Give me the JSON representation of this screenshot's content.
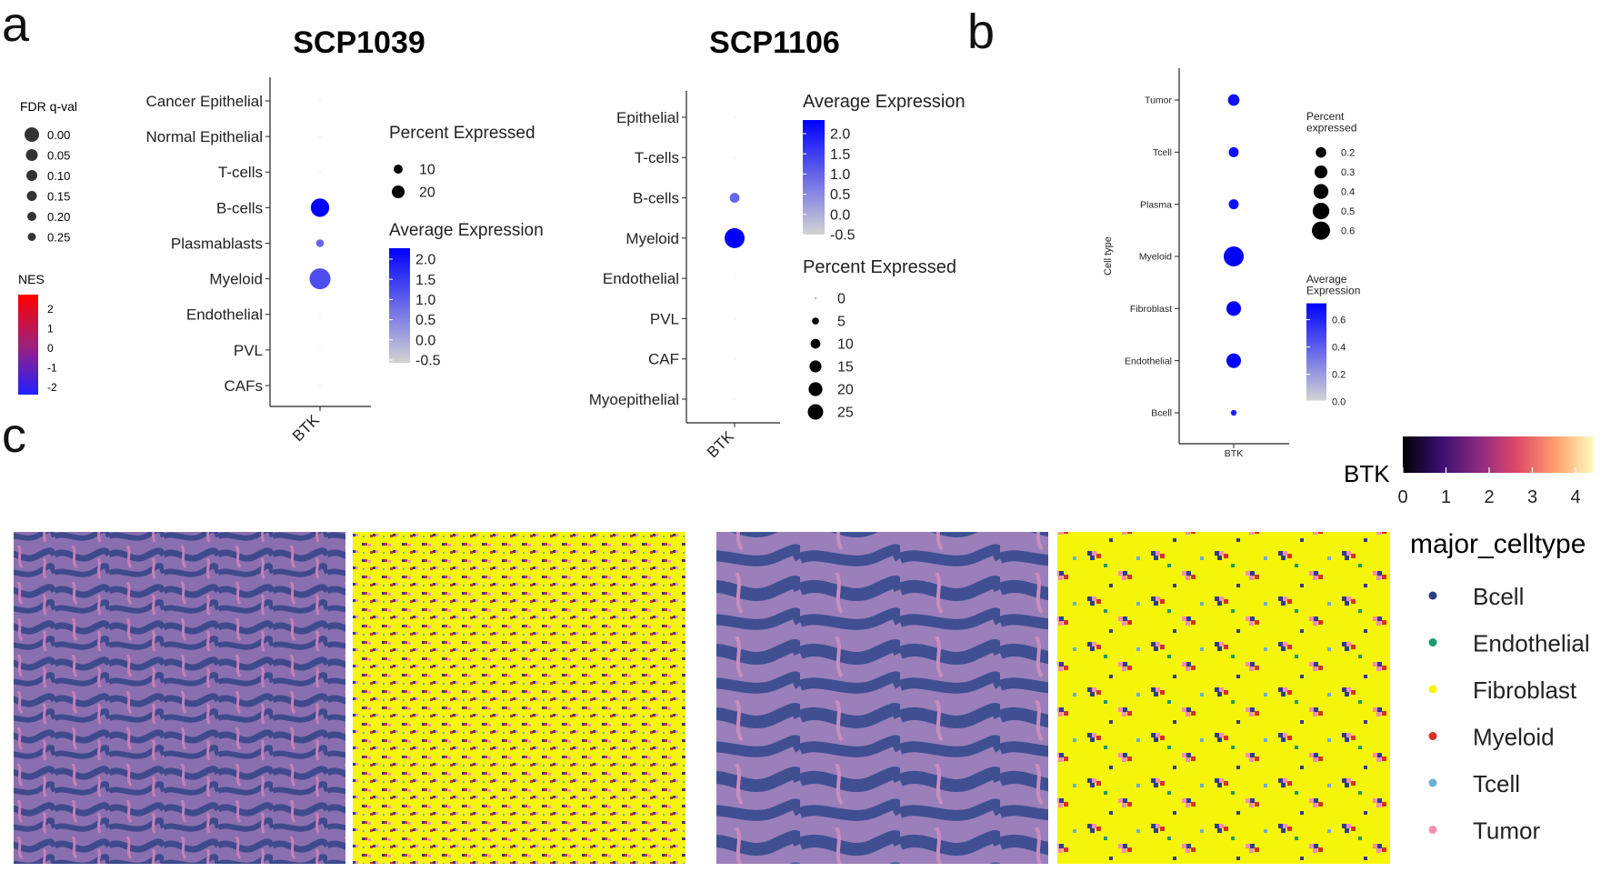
{
  "panel_letters": {
    "a": "a",
    "b": "b",
    "c": "c"
  },
  "fdr_legend": {
    "title": "FDR q-val",
    "items": [
      "0.00",
      "0.05",
      "0.10",
      "0.15",
      "0.20",
      "0.25"
    ]
  },
  "nes_legend": {
    "title": "NES",
    "ticks": [
      "2",
      "1",
      "0",
      "-1",
      "-2"
    ]
  },
  "chart_data": [
    {
      "type": "scatter",
      "title": "SCP1039",
      "x_categories": [
        "BTK"
      ],
      "y_categories": [
        "Cancer Epithelial",
        "Normal Epithelial",
        "T-cells",
        "B-cells",
        "Plasmablasts",
        "Myeloid",
        "Endothelial",
        "PVL",
        "CAFs"
      ],
      "points": [
        {
          "cell": "Cancer Epithelial",
          "percent_expressed": 0,
          "average_expression": -0.5
        },
        {
          "cell": "Normal Epithelial",
          "percent_expressed": 0,
          "average_expression": -0.5
        },
        {
          "cell": "T-cells",
          "percent_expressed": 0,
          "average_expression": -0.5
        },
        {
          "cell": "B-cells",
          "percent_expressed": 17,
          "average_expression": 2.2
        },
        {
          "cell": "Plasmablasts",
          "percent_expressed": 3,
          "average_expression": 0.9
        },
        {
          "cell": "Myeloid",
          "percent_expressed": 22,
          "average_expression": 1.2
        },
        {
          "cell": "Endothelial",
          "percent_expressed": 0,
          "average_expression": -0.5
        },
        {
          "cell": "PVL",
          "percent_expressed": 0,
          "average_expression": -0.5
        },
        {
          "cell": "CAFs",
          "percent_expressed": 0,
          "average_expression": -0.5
        }
      ],
      "size_legend": {
        "title": "Percent Expressed",
        "values": [
          10,
          20
        ],
        "labels": [
          "10",
          "20"
        ]
      },
      "color_legend": {
        "title": "Average Expression",
        "labels": [
          "2.0",
          "1.5",
          "1.0",
          "0.5",
          "0.0",
          "-0.5"
        ],
        "range": [
          -0.5,
          2.2
        ],
        "low_color": "#d3d3d3",
        "high_color": "#0000ff"
      }
    },
    {
      "type": "scatter",
      "title": "SCP1106",
      "x_categories": [
        "BTK"
      ],
      "y_categories": [
        "Epithelial",
        "T-cells",
        "B-cells",
        "Myeloid",
        "Endothelial",
        "PVL",
        "CAF",
        "Myoepithelial"
      ],
      "points": [
        {
          "cell": "Epithelial",
          "percent_expressed": 0,
          "average_expression": -0.5
        },
        {
          "cell": "T-cells",
          "percent_expressed": 0,
          "average_expression": -0.5
        },
        {
          "cell": "B-cells",
          "percent_expressed": 6,
          "average_expression": 0.9
        },
        {
          "cell": "Myeloid",
          "percent_expressed": 25,
          "average_expression": 2.2
        },
        {
          "cell": "Endothelial",
          "percent_expressed": 0,
          "average_expression": -0.5
        },
        {
          "cell": "PVL",
          "percent_expressed": 0,
          "average_expression": -0.5
        },
        {
          "cell": "CAF",
          "percent_expressed": 0,
          "average_expression": -0.5
        },
        {
          "cell": "Myoepithelial",
          "percent_expressed": 0,
          "average_expression": -0.5
        }
      ],
      "color_legend": {
        "title": "Average Expression",
        "labels": [
          "2.0",
          "1.5",
          "1.0",
          "0.5",
          "0.0",
          "-0.5"
        ],
        "range": [
          -0.5,
          2.2
        ],
        "low_color": "#d3d3d3",
        "high_color": "#0000ff"
      },
      "size_legend": {
        "title": "Percent Expressed",
        "values": [
          0,
          5,
          10,
          15,
          20,
          25
        ],
        "labels": [
          "0",
          "5",
          "10",
          "15",
          "20",
          "25"
        ]
      }
    },
    {
      "type": "scatter",
      "title": "",
      "x_categories": [
        "BTK"
      ],
      "ylabel": "Cell type",
      "y_categories": [
        "Tumor",
        "Tcell",
        "Plasma",
        "Myeloid",
        "Fibroblast",
        "Endothelial",
        "Bcell"
      ],
      "points": [
        {
          "cell": "Tumor",
          "percent_expressed": 0.2,
          "average_expression": 0.65
        },
        {
          "cell": "Tcell",
          "percent_expressed": 0.15,
          "average_expression": 0.65
        },
        {
          "cell": "Plasma",
          "percent_expressed": 0.15,
          "average_expression": 0.65
        },
        {
          "cell": "Myeloid",
          "percent_expressed": 0.6,
          "average_expression": 0.7
        },
        {
          "cell": "Fibroblast",
          "percent_expressed": 0.32,
          "average_expression": 0.7
        },
        {
          "cell": "Endothelial",
          "percent_expressed": 0.32,
          "average_expression": 0.7
        },
        {
          "cell": "Bcell",
          "percent_expressed": 0.05,
          "average_expression": 0.6
        }
      ],
      "size_legend": {
        "title_lines": [
          "Percent",
          "expressed"
        ],
        "values": [
          0.2,
          0.3,
          0.4,
          0.5,
          0.6
        ],
        "labels": [
          "0.2",
          "0.3",
          "0.4",
          "0.5",
          "0.6"
        ]
      },
      "color_legend": {
        "title_lines": [
          "Average",
          "Expression"
        ],
        "labels": [
          "0.6",
          "0.4",
          "0.2",
          "0.0"
        ],
        "range": [
          0,
          0.7
        ],
        "low_color": "#d3d3d3",
        "high_color": "#0000ff"
      }
    }
  ],
  "spatial": {
    "colorbar": {
      "title": "BTK",
      "ticks": [
        "0",
        "1",
        "2",
        "3",
        "4"
      ],
      "colors": [
        "#000004",
        "#3b0f70",
        "#8c2981",
        "#de4968",
        "#fe9f6d",
        "#fcfdbf"
      ]
    },
    "legend": {
      "title": "major_celltype",
      "items": [
        {
          "label": "Bcell",
          "color": "#2c3e8c"
        },
        {
          "label": "Endothelial",
          "color": "#1a9a6e"
        },
        {
          "label": "Fibroblast",
          "color": "#f5f50a"
        },
        {
          "label": "Myeloid",
          "color": "#d73027"
        },
        {
          "label": "Tcell",
          "color": "#6baed6"
        },
        {
          "label": "Tumor",
          "color": "#f48fb1"
        }
      ]
    }
  }
}
